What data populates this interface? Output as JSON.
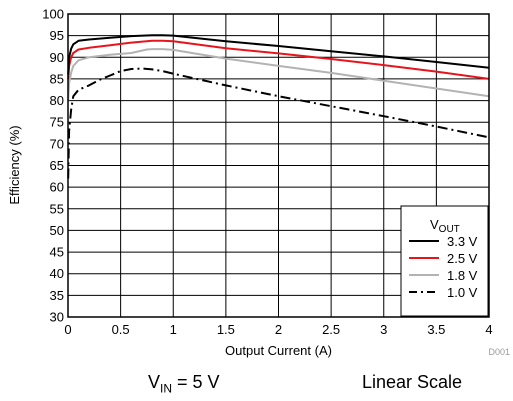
{
  "chart_data": {
    "type": "line",
    "xlabel": "Output Current (A)",
    "ylabel": "Efficiency (%)",
    "xlim": [
      0,
      4
    ],
    "ylim": [
      30,
      100
    ],
    "x_ticks": [
      "0",
      "0.5",
      "1",
      "1.5",
      "2",
      "2.5",
      "3",
      "3.5",
      "4"
    ],
    "y_ticks": [
      "30",
      "35",
      "40",
      "45",
      "50",
      "55",
      "60",
      "65",
      "70",
      "75",
      "80",
      "85",
      "90",
      "95",
      "100"
    ],
    "grid": true,
    "legend_title": {
      "main": "V",
      "sub": "OUT"
    },
    "legend_position": "bottom-right",
    "series": [
      {
        "name": "3.3 V",
        "color": "#000000",
        "dash": "solid",
        "x": [
          0.002,
          0.01,
          0.03,
          0.05,
          0.1,
          0.2,
          0.4,
          0.6,
          0.8,
          0.9,
          1.0,
          1.5,
          2.0,
          2.5,
          3.0,
          3.5,
          4.0
        ],
        "y": [
          86,
          90,
          92,
          93,
          93.8,
          94.1,
          94.5,
          94.9,
          95.1,
          95.1,
          95.0,
          93.7,
          92.6,
          91.4,
          90.2,
          88.9,
          87.6
        ]
      },
      {
        "name": "2.5 V",
        "color": "#e8141c",
        "dash": "solid",
        "x": [
          0.002,
          0.01,
          0.03,
          0.05,
          0.1,
          0.2,
          0.4,
          0.6,
          0.8,
          0.9,
          1.0,
          1.5,
          2.0,
          2.5,
          3.0,
          3.5,
          4.0
        ],
        "y": [
          85,
          88,
          90,
          91,
          91.8,
          92.2,
          92.8,
          93.4,
          93.8,
          93.8,
          93.7,
          92.1,
          90.9,
          89.6,
          88.2,
          86.7,
          85.0
        ]
      },
      {
        "name": "1.8 V",
        "color": "#b3b3b3",
        "dash": "solid",
        "x": [
          0.002,
          0.01,
          0.03,
          0.05,
          0.1,
          0.2,
          0.4,
          0.6,
          0.75,
          0.8,
          0.9,
          1.0,
          1.5,
          2.0,
          2.5,
          3.0,
          3.5,
          4.0
        ],
        "y": [
          80,
          84,
          86.5,
          88,
          89.3,
          90.0,
          90.6,
          91.0,
          91.8,
          91.9,
          91.9,
          91.7,
          89.7,
          88.0,
          86.4,
          84.6,
          82.8,
          81.0
        ]
      },
      {
        "name": "1.0 V",
        "color": "#000000",
        "dash": "dashdot",
        "x": [
          0.002,
          0.01,
          0.03,
          0.05,
          0.1,
          0.2,
          0.3,
          0.4,
          0.5,
          0.6,
          0.7,
          0.8,
          0.9,
          1.0,
          1.5,
          2.0,
          2.5,
          3.0,
          3.5,
          4.0
        ],
        "y": [
          62,
          73,
          78,
          81,
          82.5,
          83.5,
          84.8,
          85.8,
          86.8,
          87.3,
          87.4,
          87.2,
          86.8,
          86.2,
          83.5,
          81.0,
          78.7,
          76.4,
          74.0,
          71.5
        ]
      }
    ]
  },
  "figure_code": "D001",
  "captions": {
    "vin_main": "V",
    "vin_sub": "IN",
    "vin_rest": " = 5 V",
    "scale": "Linear Scale"
  }
}
